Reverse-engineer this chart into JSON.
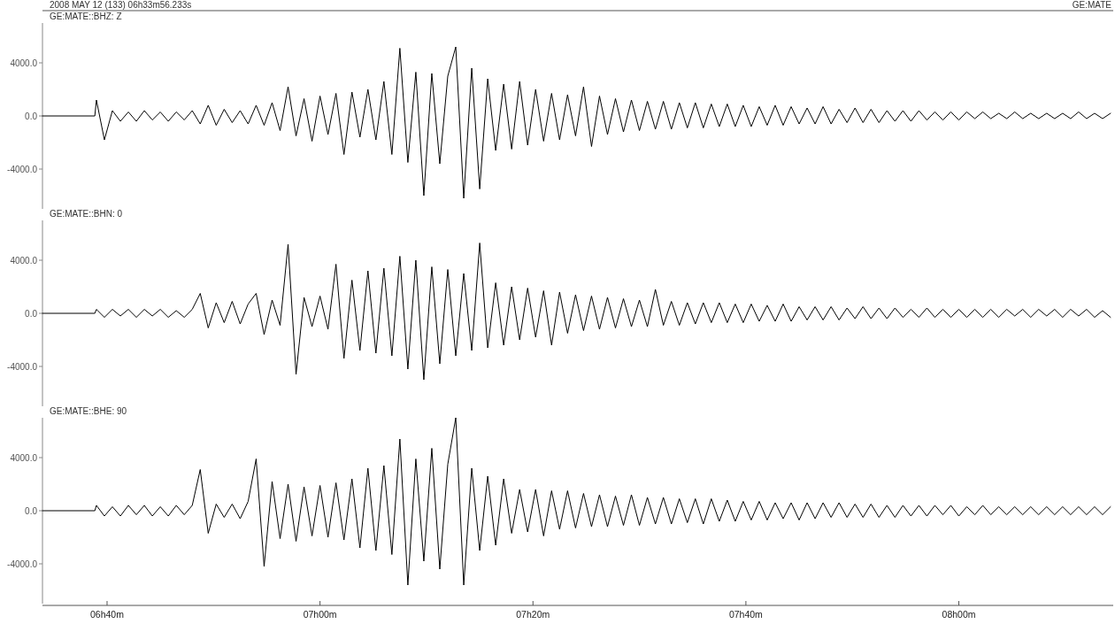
{
  "chart_data": [
    {
      "type": "line",
      "title": "GE:MATE::BHZ: Z",
      "annotations": [
        "2008 MAY 12 (133) 06h33m56.233s",
        "GE:MATE"
      ],
      "color": "#000000",
      "x": [
        "2008-05-12T06:33:56",
        "2008-05-12T06:38:51",
        "2008-05-12T06:39:00",
        "2008-05-12T06:39:45",
        "2008-05-12T06:40:30",
        "2008-05-12T06:41:15",
        "2008-05-12T06:42:00",
        "2008-05-12T06:42:45",
        "2008-05-12T06:43:30",
        "2008-05-12T06:44:15",
        "2008-05-12T06:45:00",
        "2008-05-12T06:45:45",
        "2008-05-12T06:46:30",
        "2008-05-12T06:47:15",
        "2008-05-12T06:48:00",
        "2008-05-12T06:48:45",
        "2008-05-12T06:49:30",
        "2008-05-12T06:50:15",
        "2008-05-12T06:51:00",
        "2008-05-12T06:51:45",
        "2008-05-12T06:52:30",
        "2008-05-12T06:53:15",
        "2008-05-12T06:54:00",
        "2008-05-12T06:54:45",
        "2008-05-12T06:55:30",
        "2008-05-12T06:56:15",
        "2008-05-12T06:57:00",
        "2008-05-12T06:57:45",
        "2008-05-12T06:58:30",
        "2008-05-12T06:59:15",
        "2008-05-12T07:00:00",
        "2008-05-12T07:00:45",
        "2008-05-12T07:01:30",
        "2008-05-12T07:02:15",
        "2008-05-12T07:03:00",
        "2008-05-12T07:03:45",
        "2008-05-12T07:04:30",
        "2008-05-12T07:05:15",
        "2008-05-12T07:06:00",
        "2008-05-12T07:06:45",
        "2008-05-12T07:07:30",
        "2008-05-12T07:08:15",
        "2008-05-12T07:09:00",
        "2008-05-12T07:09:45",
        "2008-05-12T07:10:30",
        "2008-05-12T07:11:15",
        "2008-05-12T07:12:00",
        "2008-05-12T07:12:45",
        "2008-05-12T07:13:30",
        "2008-05-12T07:14:15",
        "2008-05-12T07:15:00",
        "2008-05-12T07:15:45",
        "2008-05-12T07:16:30",
        "2008-05-12T07:17:15",
        "2008-05-12T07:18:00",
        "2008-05-12T07:18:45",
        "2008-05-12T07:19:30",
        "2008-05-12T07:20:15",
        "2008-05-12T07:21:00",
        "2008-05-12T07:21:45",
        "2008-05-12T07:22:30",
        "2008-05-12T07:23:15",
        "2008-05-12T07:24:00",
        "2008-05-12T07:24:45",
        "2008-05-12T07:25:30",
        "2008-05-12T07:26:15",
        "2008-05-12T07:27:00",
        "2008-05-12T07:27:45",
        "2008-05-12T07:28:30",
        "2008-05-12T07:29:15",
        "2008-05-12T07:30:00",
        "2008-05-12T07:30:45",
        "2008-05-12T07:31:30",
        "2008-05-12T07:32:15",
        "2008-05-12T07:33:00",
        "2008-05-12T07:33:45",
        "2008-05-12T07:34:30",
        "2008-05-12T07:35:15",
        "2008-05-12T07:36:00",
        "2008-05-12T07:36:45",
        "2008-05-12T07:37:30",
        "2008-05-12T07:38:15",
        "2008-05-12T07:39:00",
        "2008-05-12T07:39:45",
        "2008-05-12T07:40:30",
        "2008-05-12T07:41:15",
        "2008-05-12T07:42:00",
        "2008-05-12T07:42:45",
        "2008-05-12T07:43:30",
        "2008-05-12T07:44:15",
        "2008-05-12T07:45:00",
        "2008-05-12T07:45:45",
        "2008-05-12T07:46:30",
        "2008-05-12T07:47:15",
        "2008-05-12T07:48:00",
        "2008-05-12T07:48:45",
        "2008-05-12T07:49:30",
        "2008-05-12T07:50:15",
        "2008-05-12T07:51:00",
        "2008-05-12T07:51:45",
        "2008-05-12T07:52:30",
        "2008-05-12T07:53:15",
        "2008-05-12T07:54:00",
        "2008-05-12T07:54:45",
        "2008-05-12T07:55:30",
        "2008-05-12T07:56:15",
        "2008-05-12T07:57:00",
        "2008-05-12T07:57:45",
        "2008-05-12T07:58:30",
        "2008-05-12T07:59:15",
        "2008-05-12T08:00:00",
        "2008-05-12T08:00:45",
        "2008-05-12T08:01:30",
        "2008-05-12T08:02:15",
        "2008-05-12T08:03:00",
        "2008-05-12T08:03:45",
        "2008-05-12T08:04:30",
        "2008-05-12T08:05:15",
        "2008-05-12T08:06:00",
        "2008-05-12T08:06:45",
        "2008-05-12T08:07:30",
        "2008-05-12T08:08:15",
        "2008-05-12T08:09:00",
        "2008-05-12T08:09:45",
        "2008-05-12T08:10:30",
        "2008-05-12T08:11:15",
        "2008-05-12T08:12:00",
        "2008-05-12T08:12:45",
        "2008-05-12T08:13:30",
        "2008-05-12T08:14:15"
      ],
      "values": [
        0,
        0,
        1200,
        -1800,
        400,
        -400,
        300,
        -400,
        400,
        -300,
        300,
        -400,
        300,
        -300,
        400,
        -600,
        800,
        -700,
        500,
        -500,
        400,
        -600,
        800,
        -700,
        1000,
        -1100,
        2200,
        -1500,
        1300,
        -1900,
        1500,
        -1400,
        1700,
        -2900,
        1800,
        -1600,
        2000,
        -1800,
        2600,
        -2900,
        5100,
        -3500,
        3300,
        -6000,
        3200,
        -3600,
        3000,
        5200,
        -6200,
        3600,
        -5500,
        2800,
        -2600,
        2400,
        -2500,
        2600,
        -2200,
        2000,
        -1900,
        1700,
        -1800,
        1600,
        -1500,
        2200,
        -2300,
        1500,
        -1400,
        1300,
        -1200,
        1200,
        -1100,
        1100,
        -1000,
        1100,
        -1000,
        1000,
        -900,
        1000,
        -900,
        900,
        -800,
        900,
        -800,
        800,
        -800,
        700,
        -700,
        800,
        -700,
        700,
        -600,
        600,
        -600,
        700,
        -600,
        500,
        -500,
        600,
        -500,
        500,
        -500,
        400,
        -400,
        400,
        -400,
        400,
        -300,
        300,
        -300,
        300,
        -300,
        300,
        -200,
        300,
        -200,
        200,
        -200,
        300,
        -200,
        200,
        -200,
        200,
        -200,
        200,
        -200,
        300,
        -200,
        200,
        -200,
        200
      ],
      "xlim": [
        "2008-05-12T06:33:56",
        "2008-05-12T08:14:30"
      ],
      "ylim": [
        -7000,
        7000
      ],
      "yticks": [
        {
          "value": -4000,
          "label": "-4000.0"
        },
        {
          "value": 0,
          "label": "0.0"
        },
        {
          "value": 4000,
          "label": "4000.0"
        }
      ],
      "tick_labels": "y"
    },
    {
      "type": "line",
      "title": "GE:MATE::BHN: 0",
      "color": "#000000",
      "x": [
        "2008-05-12T06:33:56",
        "2008-05-12T06:38:51",
        "2008-05-12T06:39:00",
        "2008-05-12T06:39:45",
        "2008-05-12T06:40:30",
        "2008-05-12T06:41:15",
        "2008-05-12T06:42:00",
        "2008-05-12T06:42:45",
        "2008-05-12T06:43:30",
        "2008-05-12T06:44:15",
        "2008-05-12T06:45:00",
        "2008-05-12T06:45:45",
        "2008-05-12T06:46:30",
        "2008-05-12T06:47:15",
        "2008-05-12T06:48:00",
        "2008-05-12T06:48:45",
        "2008-05-12T06:49:30",
        "2008-05-12T06:50:15",
        "2008-05-12T06:51:00",
        "2008-05-12T06:51:45",
        "2008-05-12T06:52:30",
        "2008-05-12T06:53:15",
        "2008-05-12T06:54:00",
        "2008-05-12T06:54:45",
        "2008-05-12T06:55:30",
        "2008-05-12T06:56:15",
        "2008-05-12T06:57:00",
        "2008-05-12T06:57:45",
        "2008-05-12T06:58:30",
        "2008-05-12T06:59:15",
        "2008-05-12T07:00:00",
        "2008-05-12T07:00:45",
        "2008-05-12T07:01:30",
        "2008-05-12T07:02:15",
        "2008-05-12T07:03:00",
        "2008-05-12T07:03:45",
        "2008-05-12T07:04:30",
        "2008-05-12T07:05:15",
        "2008-05-12T07:06:00",
        "2008-05-12T07:06:45",
        "2008-05-12T07:07:30",
        "2008-05-12T07:08:15",
        "2008-05-12T07:09:00",
        "2008-05-12T07:09:45",
        "2008-05-12T07:10:30",
        "2008-05-12T07:11:15",
        "2008-05-12T07:12:00",
        "2008-05-12T07:12:45",
        "2008-05-12T07:13:30",
        "2008-05-12T07:14:15",
        "2008-05-12T07:15:00",
        "2008-05-12T07:15:45",
        "2008-05-12T07:16:30",
        "2008-05-12T07:17:15",
        "2008-05-12T07:18:00",
        "2008-05-12T07:18:45",
        "2008-05-12T07:19:30",
        "2008-05-12T07:20:15",
        "2008-05-12T07:21:00",
        "2008-05-12T07:21:45",
        "2008-05-12T07:22:30",
        "2008-05-12T07:23:15",
        "2008-05-12T07:24:00",
        "2008-05-12T07:24:45",
        "2008-05-12T07:25:30",
        "2008-05-12T07:26:15",
        "2008-05-12T07:27:00",
        "2008-05-12T07:27:45",
        "2008-05-12T07:28:30",
        "2008-05-12T07:29:15",
        "2008-05-12T07:30:00",
        "2008-05-12T07:30:45",
        "2008-05-12T07:31:30",
        "2008-05-12T07:32:15",
        "2008-05-12T07:33:00",
        "2008-05-12T07:33:45",
        "2008-05-12T07:34:30",
        "2008-05-12T07:35:15",
        "2008-05-12T07:36:00",
        "2008-05-12T07:36:45",
        "2008-05-12T07:37:30",
        "2008-05-12T07:38:15",
        "2008-05-12T07:39:00",
        "2008-05-12T07:39:45",
        "2008-05-12T07:40:30",
        "2008-05-12T07:41:15",
        "2008-05-12T07:42:00",
        "2008-05-12T07:42:45",
        "2008-05-12T07:43:30",
        "2008-05-12T07:44:15",
        "2008-05-12T07:45:00",
        "2008-05-12T07:45:45",
        "2008-05-12T07:46:30",
        "2008-05-12T07:47:15",
        "2008-05-12T07:48:00",
        "2008-05-12T07:48:45",
        "2008-05-12T07:49:30",
        "2008-05-12T07:50:15",
        "2008-05-12T07:51:00",
        "2008-05-12T07:51:45",
        "2008-05-12T07:52:30",
        "2008-05-12T07:53:15",
        "2008-05-12T07:54:00",
        "2008-05-12T07:54:45",
        "2008-05-12T07:55:30",
        "2008-05-12T07:56:15",
        "2008-05-12T07:57:00",
        "2008-05-12T07:57:45",
        "2008-05-12T07:58:30",
        "2008-05-12T07:59:15",
        "2008-05-12T08:00:00",
        "2008-05-12T08:00:45",
        "2008-05-12T08:01:30",
        "2008-05-12T08:02:15",
        "2008-05-12T08:03:00",
        "2008-05-12T08:03:45",
        "2008-05-12T08:04:30",
        "2008-05-12T08:05:15",
        "2008-05-12T08:06:00",
        "2008-05-12T08:06:45",
        "2008-05-12T08:07:30",
        "2008-05-12T08:08:15",
        "2008-05-12T08:09:00",
        "2008-05-12T08:09:45",
        "2008-05-12T08:10:30",
        "2008-05-12T08:11:15",
        "2008-05-12T08:12:00",
        "2008-05-12T08:12:45",
        "2008-05-12T08:13:30",
        "2008-05-12T08:14:15"
      ],
      "values": [
        0,
        0,
        300,
        -300,
        300,
        -200,
        300,
        -300,
        300,
        -200,
        300,
        -300,
        200,
        -300,
        300,
        1500,
        -1100,
        800,
        -700,
        900,
        -800,
        700,
        1500,
        -1600,
        1000,
        -900,
        5200,
        -4600,
        1200,
        -1000,
        1300,
        -1200,
        3700,
        -3400,
        2500,
        -2800,
        3200,
        -3000,
        3400,
        -3200,
        4300,
        -4200,
        4000,
        -5000,
        3500,
        -3800,
        3300,
        -3200,
        3000,
        -2800,
        5300,
        -2600,
        2300,
        -2400,
        2000,
        -2000,
        1900,
        -1800,
        1700,
        -2400,
        1600,
        -1500,
        1400,
        -1300,
        1300,
        -1200,
        1200,
        -1100,
        1100,
        -1000,
        1000,
        -1000,
        1800,
        -900,
        900,
        -900,
        800,
        -800,
        800,
        -700,
        800,
        -700,
        700,
        -700,
        700,
        -600,
        600,
        -600,
        700,
        -600,
        500,
        -500,
        500,
        -500,
        500,
        -500,
        400,
        -400,
        500,
        -400,
        400,
        -400,
        400,
        -300,
        300,
        -300,
        400,
        -300,
        300,
        -300,
        300,
        -300,
        300,
        -300,
        300,
        -300,
        300,
        -200,
        300,
        -300,
        300,
        -200,
        300,
        -300,
        300,
        -200,
        300,
        -300,
        200,
        -300
      ],
      "xlim": [
        "2008-05-12T06:33:56",
        "2008-05-12T08:14:30"
      ],
      "ylim": [
        -7000,
        7000
      ],
      "yticks": [
        {
          "value": -4000,
          "label": "-4000.0"
        },
        {
          "value": 0,
          "label": "0.0"
        },
        {
          "value": 4000,
          "label": "4000.0"
        }
      ],
      "tick_labels": "y"
    },
    {
      "type": "line",
      "title": "GE:MATE::BHE: 90",
      "color": "#000000",
      "x": [
        "2008-05-12T06:33:56",
        "2008-05-12T06:38:51",
        "2008-05-12T06:39:00",
        "2008-05-12T06:39:45",
        "2008-05-12T06:40:30",
        "2008-05-12T06:41:15",
        "2008-05-12T06:42:00",
        "2008-05-12T06:42:45",
        "2008-05-12T06:43:30",
        "2008-05-12T06:44:15",
        "2008-05-12T06:45:00",
        "2008-05-12T06:45:45",
        "2008-05-12T06:46:30",
        "2008-05-12T06:47:15",
        "2008-05-12T06:48:00",
        "2008-05-12T06:48:45",
        "2008-05-12T06:49:30",
        "2008-05-12T06:50:15",
        "2008-05-12T06:51:00",
        "2008-05-12T06:51:45",
        "2008-05-12T06:52:30",
        "2008-05-12T06:53:15",
        "2008-05-12T06:54:00",
        "2008-05-12T06:54:45",
        "2008-05-12T06:55:30",
        "2008-05-12T06:56:15",
        "2008-05-12T06:57:00",
        "2008-05-12T06:57:45",
        "2008-05-12T06:58:30",
        "2008-05-12T06:59:15",
        "2008-05-12T07:00:00",
        "2008-05-12T07:00:45",
        "2008-05-12T07:01:30",
        "2008-05-12T07:02:15",
        "2008-05-12T07:03:00",
        "2008-05-12T07:03:45",
        "2008-05-12T07:04:30",
        "2008-05-12T07:05:15",
        "2008-05-12T07:06:00",
        "2008-05-12T07:06:45",
        "2008-05-12T07:07:30",
        "2008-05-12T07:08:15",
        "2008-05-12T07:09:00",
        "2008-05-12T07:09:45",
        "2008-05-12T07:10:30",
        "2008-05-12T07:11:15",
        "2008-05-12T07:12:00",
        "2008-05-12T07:12:45",
        "2008-05-12T07:13:30",
        "2008-05-12T07:14:15",
        "2008-05-12T07:15:00",
        "2008-05-12T07:15:45",
        "2008-05-12T07:16:30",
        "2008-05-12T07:17:15",
        "2008-05-12T07:18:00",
        "2008-05-12T07:18:45",
        "2008-05-12T07:19:30",
        "2008-05-12T07:20:15",
        "2008-05-12T07:21:00",
        "2008-05-12T07:21:45",
        "2008-05-12T07:22:30",
        "2008-05-12T07:23:15",
        "2008-05-12T07:24:00",
        "2008-05-12T07:24:45",
        "2008-05-12T07:25:30",
        "2008-05-12T07:26:15",
        "2008-05-12T07:27:00",
        "2008-05-12T07:27:45",
        "2008-05-12T07:28:30",
        "2008-05-12T07:29:15",
        "2008-05-12T07:30:00",
        "2008-05-12T07:30:45",
        "2008-05-12T07:31:30",
        "2008-05-12T07:32:15",
        "2008-05-12T07:33:00",
        "2008-05-12T07:33:45",
        "2008-05-12T07:34:30",
        "2008-05-12T07:35:15",
        "2008-05-12T07:36:00",
        "2008-05-12T07:36:45",
        "2008-05-12T07:37:30",
        "2008-05-12T07:38:15",
        "2008-05-12T07:39:00",
        "2008-05-12T07:39:45",
        "2008-05-12T07:40:30",
        "2008-05-12T07:41:15",
        "2008-05-12T07:42:00",
        "2008-05-12T07:42:45",
        "2008-05-12T07:43:30",
        "2008-05-12T07:44:15",
        "2008-05-12T07:45:00",
        "2008-05-12T07:45:45",
        "2008-05-12T07:46:30",
        "2008-05-12T07:47:15",
        "2008-05-12T07:48:00",
        "2008-05-12T07:48:45",
        "2008-05-12T07:49:30",
        "2008-05-12T07:50:15",
        "2008-05-12T07:51:00",
        "2008-05-12T07:51:45",
        "2008-05-12T07:52:30",
        "2008-05-12T07:53:15",
        "2008-05-12T07:54:00",
        "2008-05-12T07:54:45",
        "2008-05-12T07:55:30",
        "2008-05-12T07:56:15",
        "2008-05-12T07:57:00",
        "2008-05-12T07:57:45",
        "2008-05-12T07:58:30",
        "2008-05-12T07:59:15",
        "2008-05-12T08:00:00",
        "2008-05-12T08:00:45",
        "2008-05-12T08:01:30",
        "2008-05-12T08:02:15",
        "2008-05-12T08:03:00",
        "2008-05-12T08:03:45",
        "2008-05-12T08:04:30",
        "2008-05-12T08:05:15",
        "2008-05-12T08:06:00",
        "2008-05-12T08:06:45",
        "2008-05-12T08:07:30",
        "2008-05-12T08:08:15",
        "2008-05-12T08:09:00",
        "2008-05-12T08:09:45",
        "2008-05-12T08:10:30",
        "2008-05-12T08:11:15",
        "2008-05-12T08:12:00",
        "2008-05-12T08:12:45",
        "2008-05-12T08:13:30",
        "2008-05-12T08:14:15"
      ],
      "values": [
        0,
        0,
        400,
        -400,
        300,
        -400,
        400,
        -300,
        400,
        -400,
        300,
        -400,
        400,
        -300,
        400,
        3100,
        -1700,
        500,
        -500,
        500,
        -600,
        700,
        3900,
        -4200,
        2200,
        -2100,
        2000,
        -2300,
        1800,
        -1900,
        1900,
        -2000,
        2100,
        -2200,
        2400,
        -2800,
        3200,
        -3000,
        3400,
        -3300,
        5400,
        -5600,
        3900,
        -3800,
        4700,
        -4400,
        3500,
        7000,
        -5600,
        3200,
        -3000,
        2600,
        -2600,
        2400,
        -1700,
        1600,
        -1600,
        1600,
        -1900,
        1500,
        -1400,
        1500,
        -1300,
        1300,
        -1200,
        1200,
        -1200,
        1100,
        -1100,
        1200,
        -1100,
        1000,
        -1000,
        1000,
        -1000,
        900,
        -900,
        900,
        -1000,
        900,
        -800,
        800,
        -800,
        700,
        -700,
        700,
        -700,
        600,
        -600,
        600,
        -700,
        600,
        -600,
        600,
        -500,
        600,
        -500,
        500,
        -500,
        500,
        -500,
        400,
        -500,
        400,
        -400,
        400,
        -400,
        400,
        -300,
        400,
        -400,
        300,
        -300,
        400,
        -300,
        300,
        -300,
        300,
        -300,
        300,
        -300,
        300,
        -300,
        300,
        -300,
        300,
        -300,
        300,
        -300,
        300
      ],
      "xlim": [
        "2008-05-12T06:33:56",
        "2008-05-12T08:14:30"
      ],
      "xticks": [
        {
          "value": "2008-05-12T06:40",
          "label": "06h40m"
        },
        {
          "value": "2008-05-12T07:00",
          "label": "07h00m"
        },
        {
          "value": "2008-05-12T07:20",
          "label": "07h20m"
        },
        {
          "value": "2008-05-12T07:40",
          "label": "07h40m"
        },
        {
          "value": "2008-05-12T08:00",
          "label": "08h00m"
        }
      ],
      "ylim": [
        -7000,
        7000
      ],
      "yticks": [
        {
          "value": -4000,
          "label": "-4000.0"
        },
        {
          "value": 0,
          "label": "0.0"
        },
        {
          "value": 4000,
          "label": "4000.0"
        }
      ]
    }
  ]
}
